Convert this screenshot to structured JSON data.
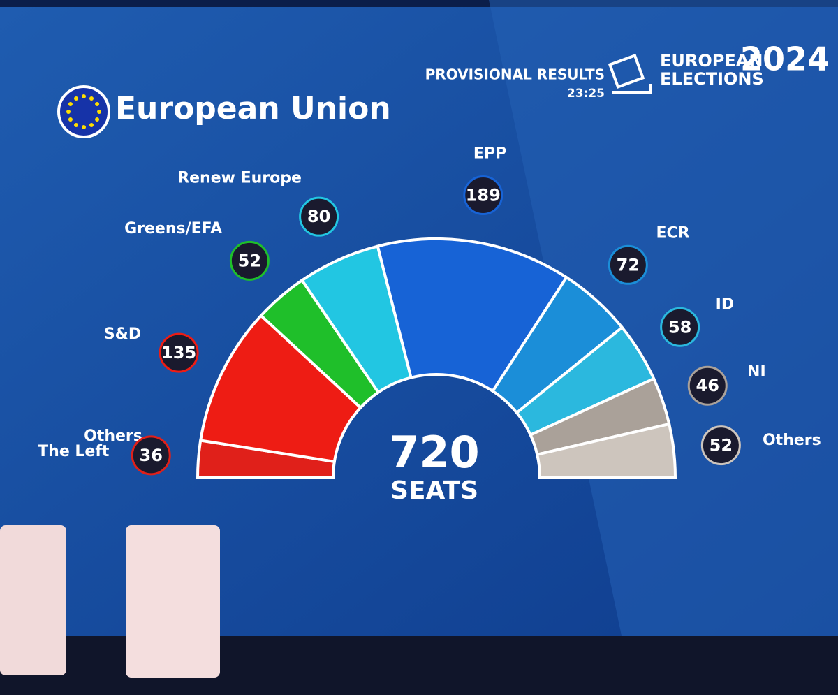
{
  "header": {
    "status": "PROVISIONAL RESULTS",
    "time": "23:25",
    "event": [
      "EUROPEAN",
      "ELECTIONS"
    ],
    "year": "2024"
  },
  "chart_data": {
    "type": "hemicycle",
    "title": "European Union",
    "categories": [
      "The Left",
      "S&D",
      "Greens/EFA",
      "Renew Europe",
      "EPP",
      "ECR",
      "ID",
      "NI",
      "Others"
    ],
    "values": [
      36,
      135,
      52,
      80,
      189,
      72,
      58,
      46,
      52
    ],
    "colors": [
      "#e0201a",
      "#ee1c14",
      "#1fbf2a",
      "#22c6e2",
      "#1763d6",
      "#1b8ed8",
      "#2bb8de",
      "#aaa199",
      "#cdc5bd"
    ],
    "total": 720,
    "total_label": "SEATS",
    "annotations": [
      "Others"
    ]
  }
}
